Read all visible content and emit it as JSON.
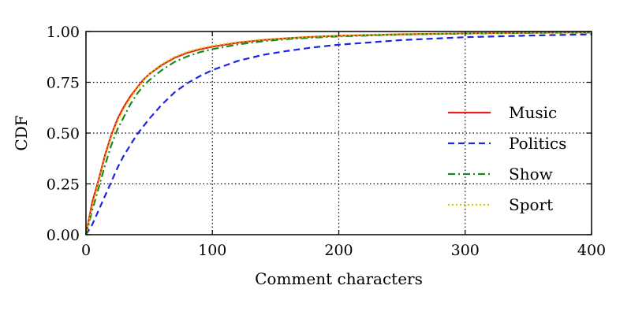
{
  "chart_data": {
    "type": "line",
    "title": "",
    "xlabel": "Comment characters",
    "ylabel": "CDF",
    "xlim": [
      0,
      400
    ],
    "ylim": [
      0,
      1
    ],
    "xticks": [
      0,
      100,
      200,
      300,
      400
    ],
    "xtick_labels": [
      "0",
      "100",
      "200",
      "300",
      "400"
    ],
    "yticks": [
      0,
      0.25,
      0.5,
      0.75,
      1.0
    ],
    "ytick_labels": [
      "0.00",
      "0.25",
      "0.50",
      "0.75",
      "1.00"
    ],
    "grid": true,
    "legend_position": "right",
    "series": [
      {
        "name": "Music",
        "color": "#e8201a",
        "style": "solid",
        "x": [
          0,
          5,
          10,
          15,
          20,
          25,
          30,
          35,
          40,
          45,
          50,
          60,
          70,
          80,
          90,
          100,
          120,
          140,
          160,
          180,
          200,
          250,
          300,
          350,
          400
        ],
        "y": [
          0.0,
          0.16,
          0.27,
          0.39,
          0.49,
          0.57,
          0.63,
          0.68,
          0.72,
          0.76,
          0.79,
          0.835,
          0.87,
          0.895,
          0.912,
          0.925,
          0.945,
          0.958,
          0.967,
          0.974,
          0.979,
          0.986,
          0.991,
          0.994,
          0.996
        ]
      },
      {
        "name": "Politics",
        "color": "#1f24e0",
        "style": "dashed",
        "x": [
          0,
          5,
          10,
          15,
          20,
          25,
          30,
          35,
          40,
          50,
          60,
          70,
          80,
          90,
          100,
          120,
          140,
          160,
          180,
          200,
          250,
          300,
          350,
          400
        ],
        "y": [
          0.0,
          0.05,
          0.12,
          0.19,
          0.26,
          0.33,
          0.39,
          0.44,
          0.49,
          0.57,
          0.64,
          0.7,
          0.745,
          0.78,
          0.81,
          0.855,
          0.885,
          0.905,
          0.922,
          0.935,
          0.958,
          0.972,
          0.98,
          0.986
        ]
      },
      {
        "name": "Show",
        "color": "#1a8a1a",
        "style": "dashdot",
        "x": [
          0,
          5,
          10,
          15,
          20,
          25,
          30,
          35,
          40,
          45,
          50,
          60,
          70,
          80,
          90,
          100,
          120,
          140,
          160,
          180,
          200,
          250,
          300,
          350,
          400
        ],
        "y": [
          0.0,
          0.12,
          0.23,
          0.34,
          0.44,
          0.52,
          0.58,
          0.64,
          0.69,
          0.73,
          0.76,
          0.81,
          0.85,
          0.877,
          0.898,
          0.913,
          0.936,
          0.952,
          0.963,
          0.97,
          0.976,
          0.985,
          0.99,
          0.993,
          0.995
        ]
      },
      {
        "name": "Sport",
        "color": "#d4c800",
        "style": "dotted",
        "x": [
          0,
          5,
          10,
          15,
          20,
          25,
          30,
          35,
          40,
          45,
          50,
          60,
          70,
          80,
          90,
          100,
          120,
          140,
          160,
          180,
          200,
          250,
          300,
          350,
          400
        ],
        "y": [
          0.0,
          0.14,
          0.26,
          0.38,
          0.48,
          0.56,
          0.62,
          0.67,
          0.715,
          0.755,
          0.79,
          0.84,
          0.875,
          0.9,
          0.917,
          0.93,
          0.948,
          0.96,
          0.968,
          0.975,
          0.98,
          0.987,
          0.991,
          0.994,
          0.996
        ]
      }
    ]
  }
}
